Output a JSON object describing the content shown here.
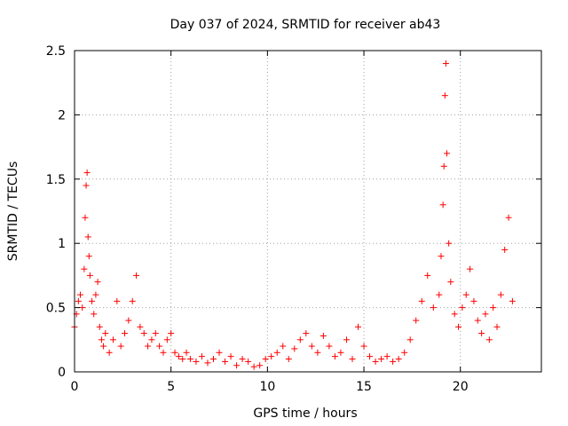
{
  "chart_data": {
    "type": "scatter",
    "title": "Day 037 of 2024, SRMTID for receiver ab43",
    "xlabel": "GPS time / hours",
    "ylabel": "SRMTID / TECUs",
    "xlim": [
      0,
      24.2
    ],
    "ylim": [
      0,
      2.5
    ],
    "x_ticks": [
      0,
      5,
      10,
      15,
      20
    ],
    "x_tick_labels": [
      "0",
      "5",
      "10",
      "15",
      "20"
    ],
    "y_ticks": [
      0,
      0.5,
      1,
      1.5,
      2,
      2.5
    ],
    "y_tick_labels": [
      "0",
      "0.5",
      "1",
      "1.5",
      "2",
      "2.5"
    ],
    "grid": true,
    "marker": "+",
    "series_color": "#ff0000",
    "series": [
      {
        "name": "SRMTID",
        "x": [
          0.0,
          0.1,
          0.2,
          0.3,
          0.4,
          0.5,
          0.55,
          0.6,
          0.65,
          0.7,
          0.75,
          0.8,
          0.9,
          1.0,
          1.1,
          1.2,
          1.3,
          1.4,
          1.5,
          1.6,
          1.8,
          2.0,
          2.2,
          2.4,
          2.6,
          2.8,
          3.0,
          3.2,
          3.4,
          3.6,
          3.8,
          4.0,
          4.2,
          4.4,
          4.6,
          4.8,
          5.0,
          5.2,
          5.4,
          5.6,
          5.8,
          6.0,
          6.3,
          6.6,
          6.9,
          7.2,
          7.5,
          7.8,
          8.1,
          8.4,
          8.7,
          9.0,
          9.3,
          9.6,
          9.9,
          10.2,
          10.5,
          10.8,
          11.1,
          11.4,
          11.7,
          12.0,
          12.3,
          12.6,
          12.9,
          13.2,
          13.5,
          13.8,
          14.1,
          14.4,
          14.7,
          15.0,
          15.3,
          15.6,
          15.9,
          16.2,
          16.5,
          16.8,
          17.1,
          17.4,
          17.7,
          18.0,
          18.3,
          18.6,
          18.9,
          19.0,
          19.1,
          19.15,
          19.2,
          19.25,
          19.3,
          19.4,
          19.5,
          19.7,
          19.9,
          20.1,
          20.3,
          20.5,
          20.7,
          20.9,
          21.1,
          21.3,
          21.5,
          21.7,
          21.9,
          22.1,
          22.3,
          22.5,
          22.7
        ],
        "y": [
          0.35,
          0.45,
          0.55,
          0.6,
          0.5,
          0.8,
          1.2,
          1.45,
          1.55,
          1.05,
          0.9,
          0.75,
          0.55,
          0.45,
          0.6,
          0.7,
          0.35,
          0.25,
          0.2,
          0.3,
          0.15,
          0.25,
          0.55,
          0.2,
          0.3,
          0.4,
          0.55,
          0.75,
          0.35,
          0.3,
          0.2,
          0.25,
          0.3,
          0.2,
          0.15,
          0.25,
          0.3,
          0.15,
          0.12,
          0.1,
          0.15,
          0.1,
          0.08,
          0.12,
          0.07,
          0.1,
          0.15,
          0.08,
          0.12,
          0.05,
          0.1,
          0.08,
          0.04,
          0.05,
          0.1,
          0.12,
          0.15,
          0.2,
          0.1,
          0.18,
          0.25,
          0.3,
          0.2,
          0.15,
          0.28,
          0.2,
          0.12,
          0.15,
          0.25,
          0.1,
          0.35,
          0.2,
          0.12,
          0.08,
          0.1,
          0.12,
          0.08,
          0.1,
          0.15,
          0.25,
          0.4,
          0.55,
          0.75,
          0.5,
          0.6,
          0.9,
          1.3,
          1.6,
          2.15,
          2.4,
          1.7,
          1.0,
          0.7,
          0.45,
          0.35,
          0.5,
          0.6,
          0.8,
          0.55,
          0.4,
          0.3,
          0.45,
          0.25,
          0.5,
          0.35,
          0.6,
          0.95,
          1.2,
          0.55
        ]
      }
    ]
  }
}
